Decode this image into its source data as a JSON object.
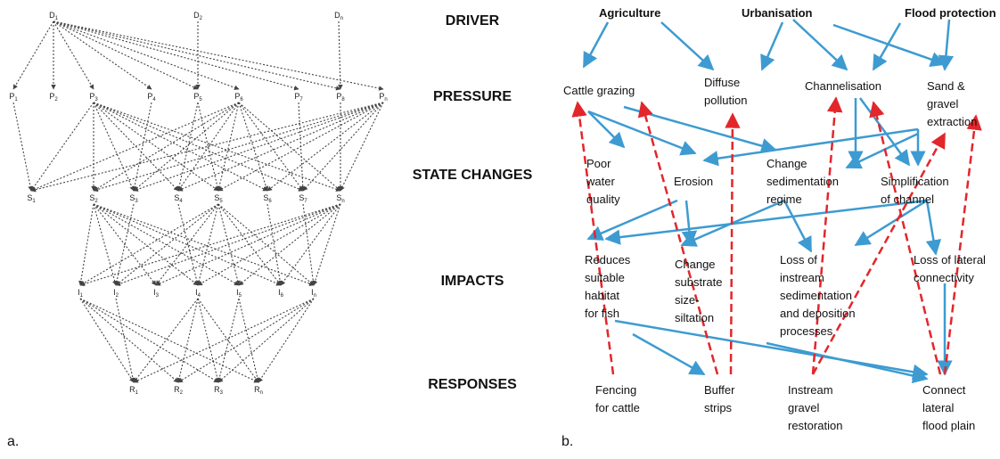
{
  "panel_a": {
    "caption": "a.",
    "levels": [
      [
        {
          "base": "D",
          "sub": "1"
        },
        {
          "base": "D",
          "sub": "2"
        },
        {
          "base": "D",
          "sub": "n"
        }
      ],
      [
        {
          "base": "P",
          "sub": "1"
        },
        {
          "base": "P",
          "sub": "2"
        },
        {
          "base": "P",
          "sub": "3"
        },
        {
          "base": "P",
          "sub": "4"
        },
        {
          "base": "P",
          "sub": "5"
        },
        {
          "base": "P",
          "sub": "6"
        },
        {
          "base": "P",
          "sub": "7"
        },
        {
          "base": "P",
          "sub": "8"
        },
        {
          "base": "P",
          "sub": "n"
        }
      ],
      [
        {
          "base": "S",
          "sub": "1"
        },
        {
          "base": "S",
          "sub": "2"
        },
        {
          "base": "S",
          "sub": "3"
        },
        {
          "base": "S",
          "sub": "4"
        },
        {
          "base": "S",
          "sub": "5"
        },
        {
          "base": "S",
          "sub": "6"
        },
        {
          "base": "S",
          "sub": "7"
        },
        {
          "base": "S",
          "sub": "n"
        }
      ],
      [
        {
          "base": "I",
          "sub": "1"
        },
        {
          "base": "I",
          "sub": "2"
        },
        {
          "base": "I",
          "sub": "3"
        },
        {
          "base": "I",
          "sub": "4"
        },
        {
          "base": "I",
          "sub": "5"
        },
        {
          "base": "I",
          "sub": "6"
        },
        {
          "base": "I",
          "sub": "n"
        }
      ],
      [
        {
          "base": "R",
          "sub": "1"
        },
        {
          "base": "R",
          "sub": "2"
        },
        {
          "base": "R",
          "sub": "3"
        },
        {
          "base": "R",
          "sub": "n"
        }
      ]
    ]
  },
  "level_labels": [
    "DRIVER",
    "PRESSURE",
    "STATE CHANGES",
    "IMPACTS",
    "RESPONSES"
  ],
  "panel_b": {
    "caption": "b.",
    "drivers": [
      [
        "Agriculture"
      ],
      [
        "Urbanisation"
      ],
      [
        "Flood protection"
      ]
    ],
    "pressures": [
      [
        "Cattle grazing"
      ],
      [
        "Diffuse",
        "pollution"
      ],
      [
        "Channelisation"
      ],
      [
        "Sand &",
        "gravel",
        "extraction"
      ]
    ],
    "state_changes": [
      [
        "Poor",
        "water",
        "quality"
      ],
      [
        "Erosion"
      ],
      [
        "Change",
        "sedimentation",
        "regime"
      ],
      [
        "Simplification",
        "of channel"
      ]
    ],
    "impacts": [
      [
        "Reduces",
        "suitable",
        "habitat",
        "for fish"
      ],
      [
        "Change",
        "substrate",
        "size-",
        "siltation"
      ],
      [
        "Loss of",
        "instream",
        "sedimentation",
        "and deposition",
        "processes"
      ],
      [
        "Loss of lateral",
        "connectivity"
      ]
    ],
    "responses": [
      [
        "Fencing",
        "for cattle"
      ],
      [
        "Buffer",
        "strips"
      ],
      [
        "Instream",
        "gravel",
        "restoration"
      ],
      [
        "Connect",
        "lateral",
        "flood plain"
      ]
    ]
  }
}
